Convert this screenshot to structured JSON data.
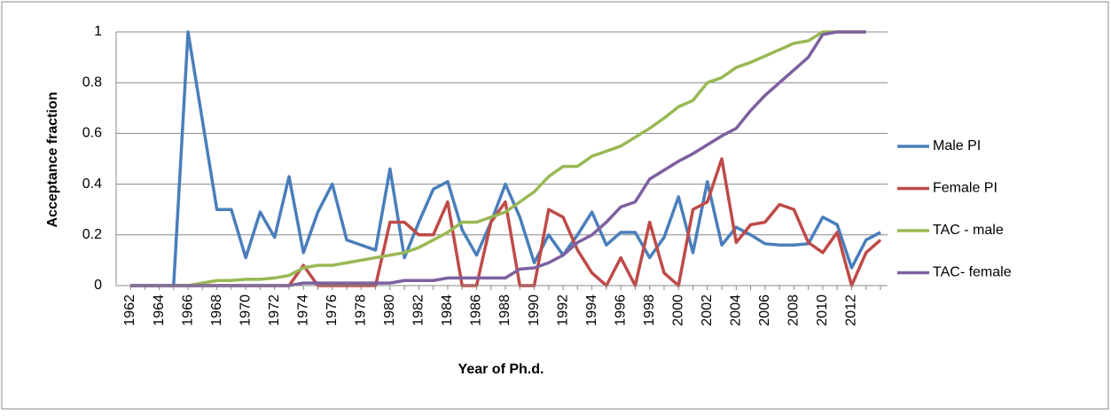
{
  "chart_data": {
    "type": "line",
    "ylabel": "Acceptance fraction",
    "xlabel": "Year of Ph.d.",
    "categories": [
      "1962",
      null,
      "1964",
      null,
      "1966",
      null,
      "1968",
      null,
      "1970",
      null,
      "1972",
      null,
      "1974",
      null,
      "1976",
      null,
      "1978",
      null,
      "1980",
      null,
      "1982",
      null,
      "1984",
      null,
      "1986",
      null,
      "1988",
      null,
      "1990",
      null,
      "1992",
      null,
      "1994",
      null,
      "1996",
      null,
      "1998",
      null,
      "2000",
      null,
      "2002",
      null,
      "2004",
      null,
      "2006",
      null,
      "2008",
      null,
      "2010",
      null,
      "2012",
      null,
      null
    ],
    "series": [
      {
        "name": "Male PI",
        "color": "#4a7ebb",
        "values": [
          0,
          0,
          0,
          0,
          1,
          0.65,
          0.3,
          0.3,
          0.11,
          0.29,
          0.19,
          0.43,
          0.13,
          0.29,
          0.4,
          0.18,
          0.16,
          0.14,
          0.46,
          0.11,
          0.25,
          0.38,
          0.41,
          0.22,
          0.12,
          0.25,
          0.4,
          0.27,
          0.09,
          0.2,
          0.12,
          0.2,
          0.29,
          0.16,
          0.21,
          0.21,
          0.11,
          0.19,
          0.35,
          0.13,
          0.41,
          0.16,
          0.23,
          0.2,
          0.165,
          0.16,
          0.16,
          0.165,
          0.27,
          0.24,
          0.07,
          0.18,
          0.21
        ]
      },
      {
        "name": "Female PI",
        "color": "#be4b48",
        "values": [
          0,
          0,
          0,
          0,
          0,
          0,
          0,
          0,
          0,
          0,
          0,
          0,
          0.08,
          0,
          0,
          0,
          0,
          0,
          0.25,
          0.25,
          0.2,
          0.2,
          0.33,
          0,
          0,
          0.25,
          0.33,
          0,
          0,
          0.3,
          0.27,
          0.14,
          0.05,
          0,
          0.11,
          0,
          0.25,
          0.05,
          0,
          0.3,
          0.33,
          0.5,
          0.17,
          0.24,
          0.25,
          0.32,
          0.3,
          0.17,
          0.13,
          0.21,
          0,
          0.13,
          0.18
        ]
      },
      {
        "name": "TAC - male",
        "color": "#98b954",
        "values": [
          0,
          0,
          0,
          0,
          0,
          0.01,
          0.02,
          0.02,
          0.025,
          0.025,
          0.03,
          0.04,
          0.07,
          0.08,
          0.08,
          0.09,
          0.1,
          0.11,
          0.12,
          0.13,
          0.15,
          0.18,
          0.21,
          0.25,
          0.25,
          0.27,
          0.29,
          0.33,
          0.37,
          0.43,
          0.47,
          0.47,
          0.51,
          0.53,
          0.55,
          0.585,
          0.62,
          0.66,
          0.705,
          0.73,
          0.8,
          0.82,
          0.86,
          0.88,
          0.905,
          0.93,
          0.955,
          0.965,
          1,
          1,
          1,
          1,
          null
        ]
      },
      {
        "name": "TAC- female",
        "color": "#7d60a0",
        "values": [
          0,
          0,
          0,
          0,
          0,
          0,
          0,
          0,
          0,
          0,
          0,
          0,
          0.01,
          0.01,
          0.01,
          0.01,
          0.01,
          0.01,
          0.01,
          0.02,
          0.02,
          0.02,
          0.03,
          0.03,
          0.03,
          0.03,
          0.03,
          0.065,
          0.07,
          0.09,
          0.12,
          0.17,
          0.2,
          0.25,
          0.31,
          0.33,
          0.42,
          0.455,
          0.49,
          0.52,
          0.555,
          0.59,
          0.62,
          0.69,
          0.75,
          0.8,
          0.85,
          0.9,
          0.99,
          1,
          1,
          1,
          null
        ]
      }
    ],
    "ylim": [
      0,
      1
    ],
    "yticks": [
      0,
      0.2,
      0.4,
      0.6,
      0.8,
      1
    ],
    "grid": true,
    "legend": "right"
  }
}
